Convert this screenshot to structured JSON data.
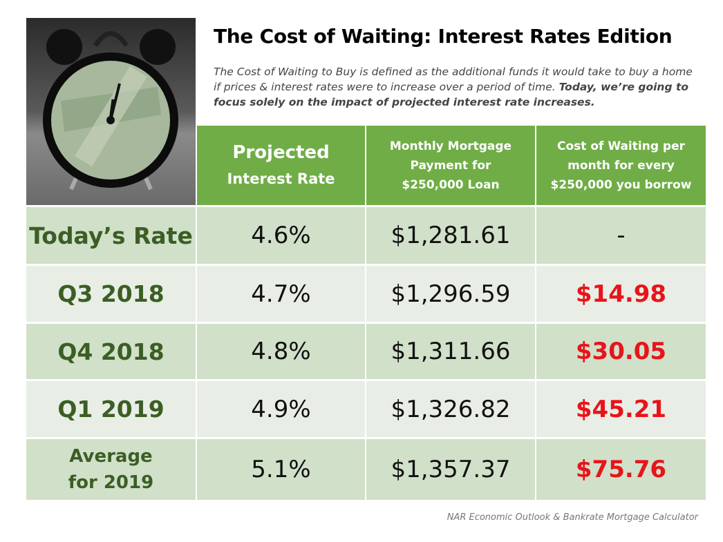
{
  "title": "The Cost of Waiting: Interest Rates Edition",
  "subtitle_plain": "The Cost of Waiting to Buy is defined as the additional funds it would take to buy a home if prices & interest rates were to increase over a period of time.",
  "subtitle_bold": "Today, we’re going to focus solely on the impact of projected interest rate increases.",
  "headers": {
    "rate_line1": "Projected",
    "rate_line2": "Interest Rate",
    "payment": "Monthly Mortgage Payment for $250,000 Loan",
    "cost": "Cost of Waiting per month for every $250,000 you borrow"
  },
  "rows": [
    {
      "label": "Today’s Rate",
      "rate": "4.6%",
      "payment": "$1,281.61",
      "cost": "-"
    },
    {
      "label": "Q3 2018",
      "rate": "4.7%",
      "payment": "$1,296.59",
      "cost": "$14.98"
    },
    {
      "label": "Q4 2018",
      "rate": "4.8%",
      "payment": "$1,311.66",
      "cost": "$30.05"
    },
    {
      "label": "Q1 2019",
      "rate": "4.9%",
      "payment": "$1,326.82",
      "cost": "$45.21"
    },
    {
      "label": "Average for 2019",
      "rate": "5.1%",
      "payment": "$1,357.37",
      "cost": "$75.76"
    }
  ],
  "source": "NAR Economic Outlook & Bankrate Mortgage Calculator",
  "colors": {
    "header": "#70ad47",
    "label": "#3b5e24",
    "cost": "#e8141b"
  }
}
